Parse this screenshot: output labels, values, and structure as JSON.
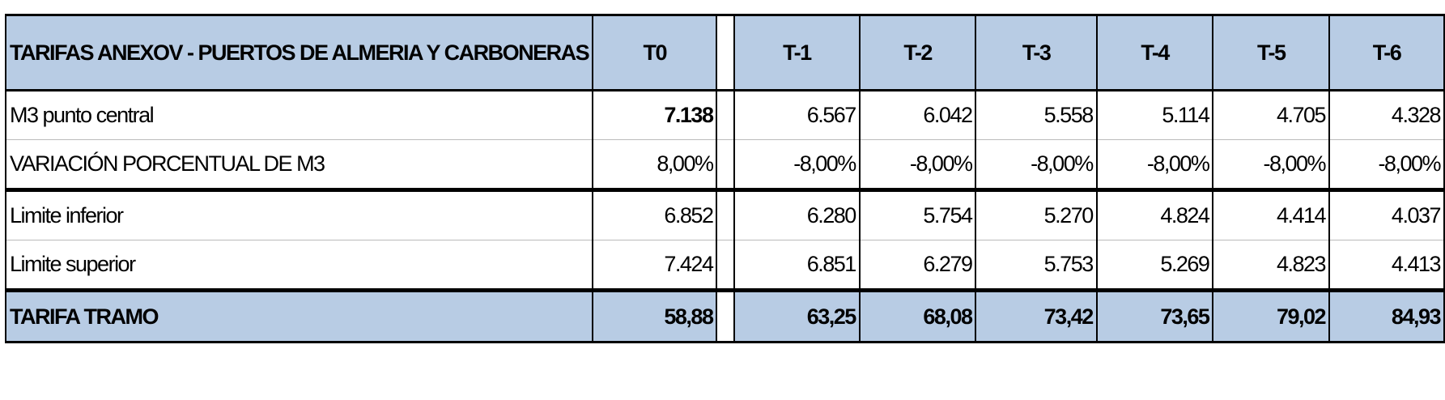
{
  "header": {
    "title": "TARIFAS ANEXOV - PUERTOS DE ALMERIA Y CARBONERAS",
    "columns": [
      "T0",
      "T-1",
      "T-2",
      "T-3",
      "T-4",
      "T-5",
      "T-6"
    ]
  },
  "rows": [
    {
      "label": "M3 punto central",
      "values": [
        "7.138",
        "6.567",
        "6.042",
        "5.558",
        "5.114",
        "4.705",
        "4.328"
      ]
    },
    {
      "label": "VARIACIÓN PORCENTUAL DE  M3",
      "values": [
        "8,00%",
        "-8,00%",
        "-8,00%",
        "-8,00%",
        "-8,00%",
        "-8,00%",
        "-8,00%"
      ]
    },
    {
      "label": "Limite inferior",
      "values": [
        "6.852",
        "6.280",
        "5.754",
        "5.270",
        "4.824",
        "4.414",
        "4.037"
      ]
    },
    {
      "label": "Limite superior",
      "values": [
        "7.424",
        "6.851",
        "6.279",
        "5.753",
        "5.269",
        "4.823",
        "4.413"
      ]
    },
    {
      "label": "TARIFA TRAMO",
      "values": [
        "58,88",
        "63,25",
        "68,08",
        "73,42",
        "73,65",
        "79,02",
        "84,93"
      ]
    }
  ]
}
